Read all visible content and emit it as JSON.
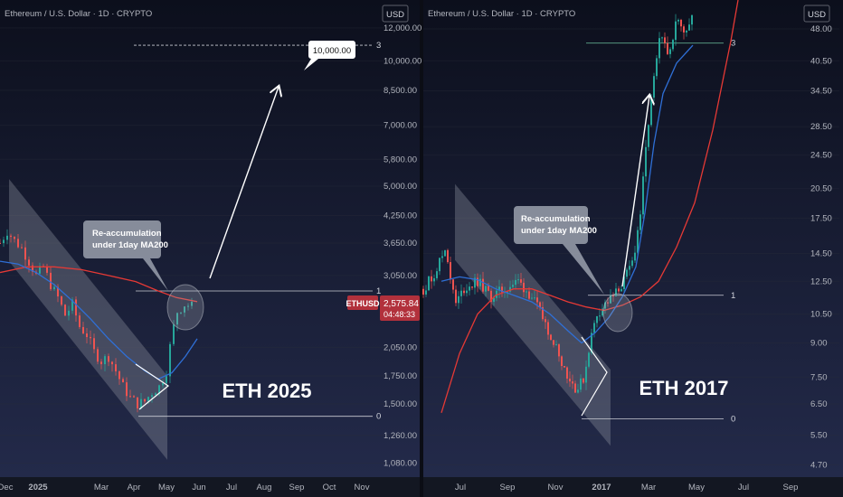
{
  "colors": {
    "background_top": "#0c0f1c",
    "background_bottom": "#232a4a",
    "candle_up": "#26a69a",
    "candle_down": "#ef5350",
    "ma_blue": "#2f6fd6",
    "ma_red": "#e53935",
    "channel": "#8a8f9c",
    "price_badge": "#b2313c",
    "arrow": "#ffffff"
  },
  "chart_data": [
    {
      "type": "candlestick",
      "title": "Ethereum / U.S. Dollar · 1D · CRYPTO",
      "currency_button": "USD",
      "scale": "log",
      "x_ticks": [
        "Dec",
        "2025",
        "Mar",
        "Apr",
        "May",
        "Jun",
        "Jul",
        "Aug",
        "Sep",
        "Oct",
        "Nov"
      ],
      "y_ticks": [
        "12,000.00",
        "10,000.00",
        "8,500.00",
        "7,000.00",
        "5,800.00",
        "5,000.00",
        "4,250.00",
        "3,650.00",
        "3,050.00",
        "2,050.00",
        "1,750.00",
        "1,500.00",
        "1,260.00",
        "1,080.00"
      ],
      "y_tick_values": [
        12000,
        10000,
        8500,
        7000,
        5800,
        5000,
        4250,
        3650,
        3050,
        2050,
        1750,
        1500,
        1260,
        1080
      ],
      "ylim": [
        1000,
        14000
      ],
      "current_price": {
        "symbol": "ETHUSD",
        "value": "2,575.84",
        "countdown": "04:48:33"
      },
      "price_path": [
        [
          0,
          3650
        ],
        [
          8,
          3900
        ],
        [
          16,
          3700
        ],
        [
          24,
          3550
        ],
        [
          32,
          3300
        ],
        [
          40,
          3050
        ],
        [
          48,
          3200
        ],
        [
          56,
          2900
        ],
        [
          64,
          2700
        ],
        [
          72,
          2450
        ],
        [
          80,
          2600
        ],
        [
          88,
          2300
        ],
        [
          96,
          2200
        ],
        [
          104,
          2000
        ],
        [
          112,
          1900
        ],
        [
          120,
          1950
        ],
        [
          128,
          1800
        ],
        [
          136,
          1650
        ],
        [
          144,
          1550
        ],
        [
          152,
          1500
        ],
        [
          160,
          1520
        ],
        [
          168,
          1600
        ],
        [
          176,
          1650
        ],
        [
          184,
          1800
        ],
        [
          190,
          2200
        ],
        [
          196,
          2500
        ],
        [
          204,
          2600
        ],
        [
          212,
          2575
        ]
      ],
      "ma_blue": [
        [
          0,
          3300
        ],
        [
          20,
          3250
        ],
        [
          40,
          3100
        ],
        [
          60,
          2900
        ],
        [
          80,
          2650
        ],
        [
          100,
          2400
        ],
        [
          120,
          2150
        ],
        [
          140,
          1950
        ],
        [
          160,
          1800
        ],
        [
          175,
          1720
        ],
        [
          190,
          1780
        ],
        [
          205,
          1950
        ],
        [
          218,
          2150
        ]
      ],
      "ma_red": [
        [
          0,
          3100
        ],
        [
          30,
          3200
        ],
        [
          60,
          3200
        ],
        [
          90,
          3150
        ],
        [
          120,
          3050
        ],
        [
          150,
          2950
        ],
        [
          175,
          2800
        ],
        [
          195,
          2700
        ],
        [
          218,
          2640
        ]
      ],
      "channel_polygon": [
        [
          10,
          5200
        ],
        [
          185,
          1750
        ],
        [
          185,
          1100
        ],
        [
          10,
          3300
        ]
      ],
      "levels": [
        {
          "label": "1",
          "value": 2800
        },
        {
          "label": "0",
          "value": 1400
        },
        {
          "label": "3",
          "value": 10900
        }
      ],
      "target_label": "10,000.00",
      "callout": {
        "line1": "Re-accumulation",
        "line2": "under 1day MA200"
      },
      "big_label": "ETH 2025"
    },
    {
      "type": "candlestick",
      "title": "Ethereum / U.S. Dollar · 1D · CRYPTO",
      "currency_button": "USD",
      "scale": "log",
      "x_ticks": [
        "Jul",
        "Sep",
        "Nov",
        "2017",
        "Mar",
        "May",
        "Jul",
        "Sep"
      ],
      "y_ticks": [
        "48.00",
        "40.50",
        "34.50",
        "28.50",
        "24.50",
        "20.50",
        "17.50",
        "14.50",
        "12.50",
        "10.50",
        "9.00",
        "7.50",
        "6.50",
        "5.50",
        "4.70"
      ],
      "y_tick_values": [
        48,
        40.5,
        34.5,
        28.5,
        24.5,
        20.5,
        17.5,
        14.5,
        12.5,
        10.5,
        9,
        7.5,
        6.5,
        5.5,
        4.7
      ],
      "ylim": [
        4.4,
        56
      ],
      "price_path": [
        [
          0,
          12
        ],
        [
          12,
          13
        ],
        [
          25,
          15
        ],
        [
          35,
          11
        ],
        [
          45,
          12
        ],
        [
          60,
          12.5
        ],
        [
          75,
          11.5
        ],
        [
          90,
          12
        ],
        [
          105,
          12.5
        ],
        [
          120,
          11.5
        ],
        [
          135,
          10
        ],
        [
          150,
          8.5
        ],
        [
          160,
          7.5
        ],
        [
          170,
          7
        ],
        [
          178,
          7.5
        ],
        [
          184,
          9
        ],
        [
          192,
          10.5
        ],
        [
          200,
          11
        ],
        [
          210,
          11.5
        ],
        [
          222,
          12.5
        ],
        [
          232,
          14
        ],
        [
          240,
          18
        ],
        [
          248,
          28
        ],
        [
          256,
          38
        ],
        [
          262,
          46
        ],
        [
          270,
          42
        ],
        [
          280,
          50
        ],
        [
          290,
          48
        ],
        [
          298,
          52
        ]
      ],
      "ma_blue": [
        [
          20,
          12.5
        ],
        [
          40,
          12.8
        ],
        [
          60,
          12.6
        ],
        [
          80,
          12
        ],
        [
          100,
          11.6
        ],
        [
          120,
          11.2
        ],
        [
          140,
          10.5
        ],
        [
          160,
          9.6
        ],
        [
          175,
          9
        ],
        [
          190,
          9.5
        ],
        [
          205,
          10.3
        ],
        [
          220,
          11.5
        ],
        [
          235,
          13.5
        ],
        [
          245,
          18
        ],
        [
          255,
          26
        ],
        [
          265,
          34
        ],
        [
          280,
          40
        ],
        [
          298,
          44
        ]
      ],
      "ma_red": [
        [
          20,
          6.2
        ],
        [
          40,
          8.5
        ],
        [
          60,
          10.5
        ],
        [
          80,
          11.6
        ],
        [
          100,
          12
        ],
        [
          120,
          12
        ],
        [
          140,
          11.6
        ],
        [
          160,
          11.2
        ],
        [
          180,
          10.9
        ],
        [
          200,
          10.7
        ],
        [
          220,
          11
        ],
        [
          240,
          11.5
        ],
        [
          260,
          12.5
        ],
        [
          280,
          15
        ],
        [
          300,
          19
        ],
        [
          320,
          28
        ],
        [
          340,
          45
        ],
        [
          348,
          56
        ]
      ],
      "channel_polygon": [
        [
          35,
          21
        ],
        [
          207,
          7.8
        ],
        [
          207,
          5.2
        ],
        [
          35,
          14
        ]
      ],
      "levels": [
        {
          "label": "1",
          "value": 11.6
        },
        {
          "label": "0",
          "value": 6.0
        },
        {
          "label": "3",
          "value": 44.5
        }
      ],
      "callout": {
        "line1": "Re-accumulation",
        "line2": "under 1day MA200"
      },
      "big_label": "ETH 2017"
    }
  ]
}
